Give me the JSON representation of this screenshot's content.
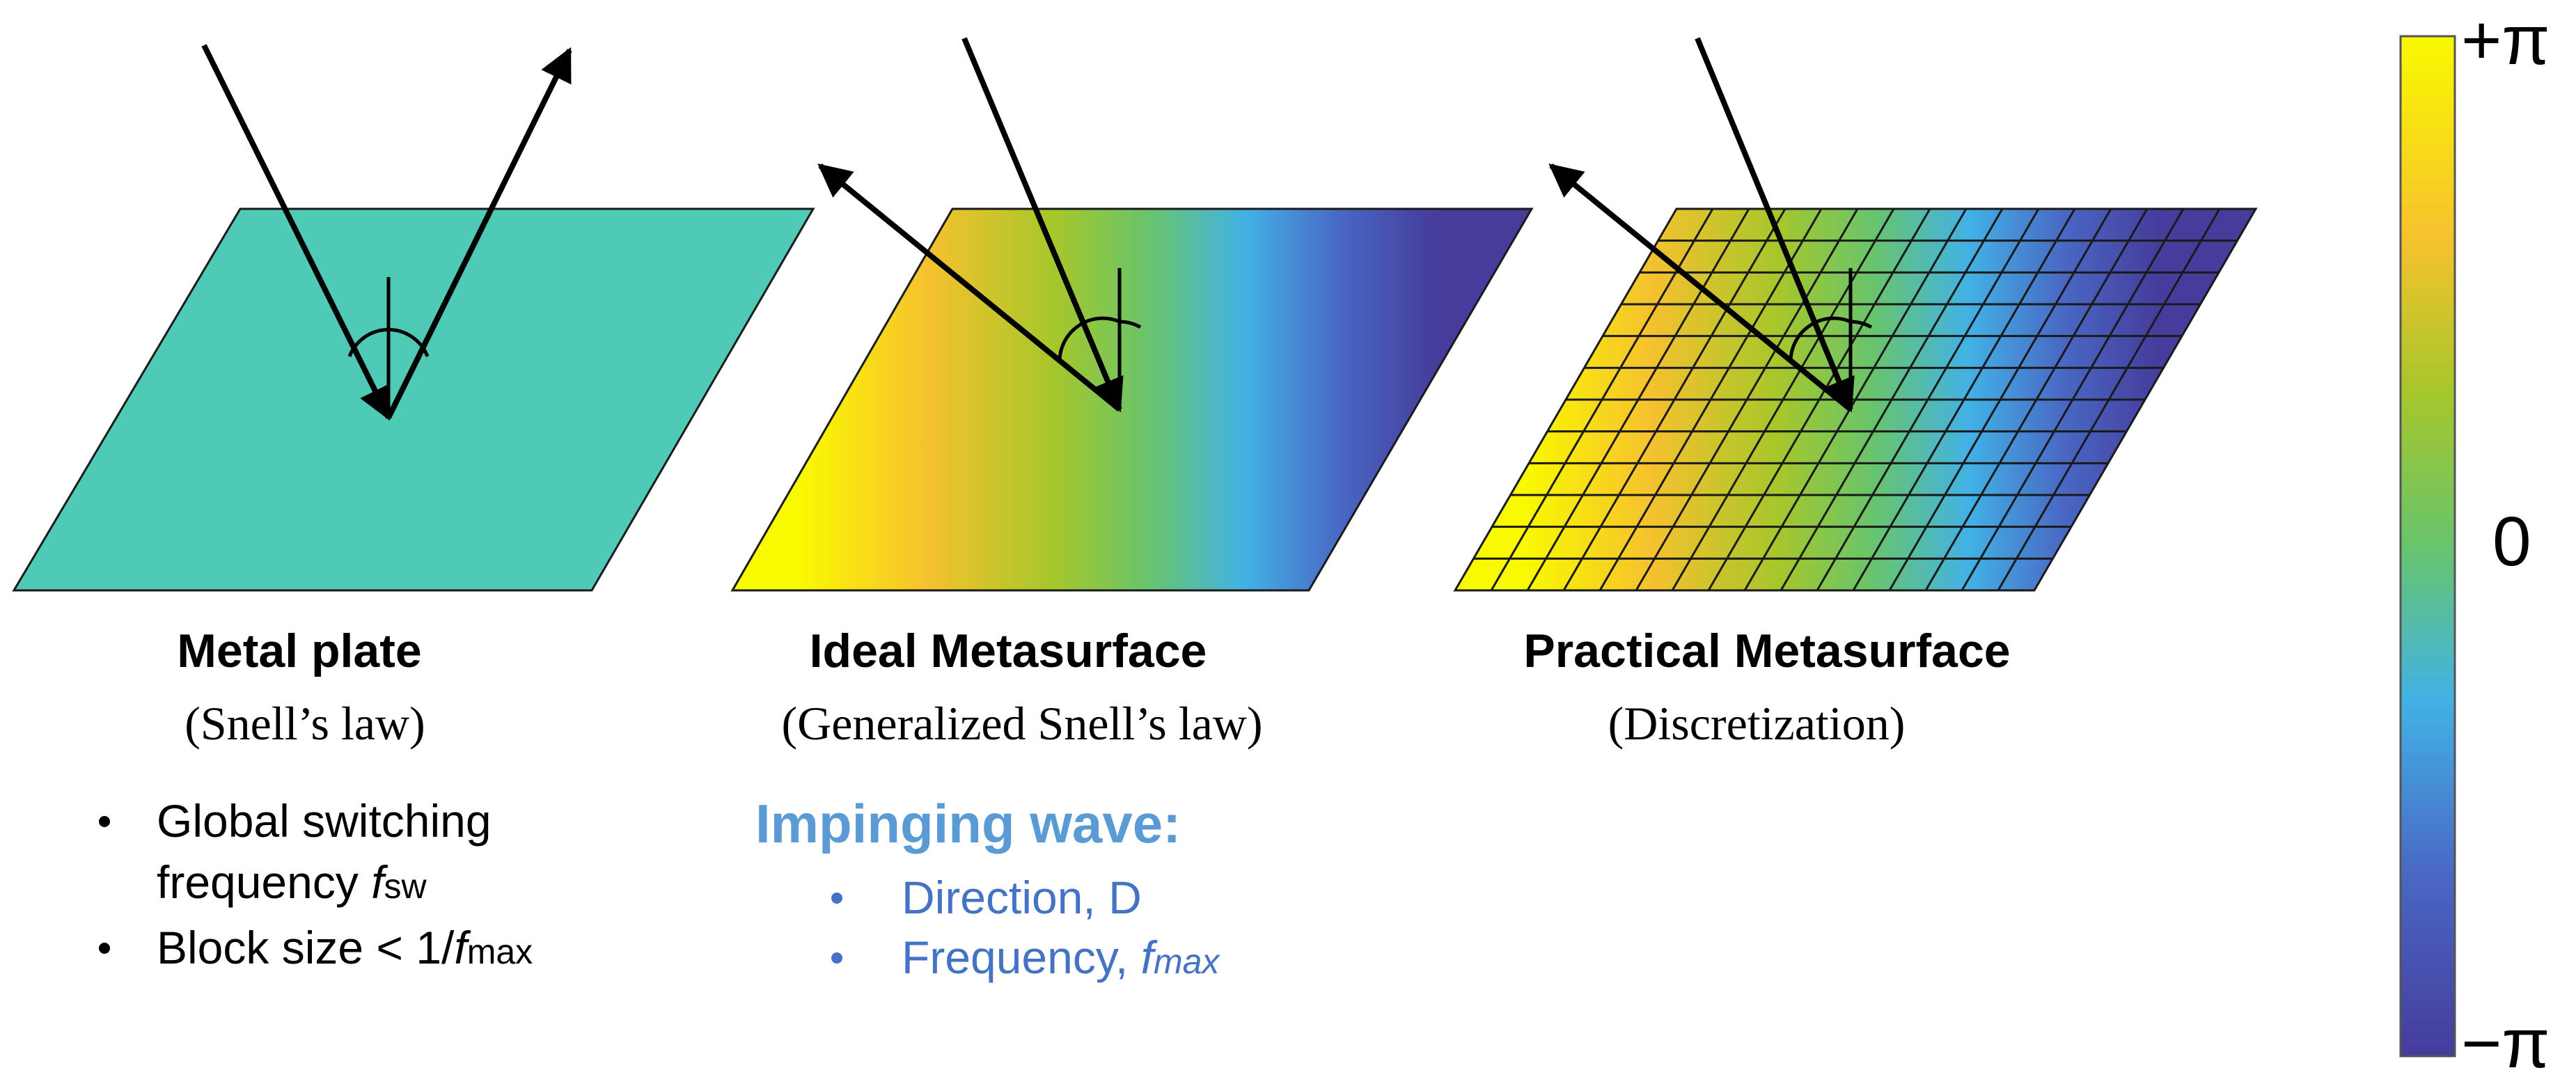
{
  "panels": [
    {
      "title": "Metal plate",
      "subtitle": "(Snell’s law)"
    },
    {
      "title": "Ideal Metasurface",
      "subtitle": "(Generalized Snell’s law)"
    },
    {
      "title": "Practical Metasurface",
      "subtitle": "(Discretization)"
    }
  ],
  "notes": {
    "item1_line1": "Global switching",
    "item1_line2_text": "frequency ",
    "item1_symbol": "f",
    "item1_subscript": "sw",
    "item2_text": "Block size < 1/",
    "item2_symbol": "f",
    "item2_subscript": "max"
  },
  "impinging_wave": {
    "title": "Impinging wave:",
    "item1": "Direction, D",
    "item2_text": "Frequency, ",
    "item2_symbol": "f",
    "item2_subscript": "max"
  },
  "colorbar": {
    "top_label": "+π",
    "mid_label": "0",
    "bottom_label": "−π",
    "colors": [
      "#f9f900",
      "#f6c12e",
      "#a6c72b",
      "#68c46c",
      "#42b2e6",
      "#4968c4",
      "#463c9c"
    ]
  },
  "metal_plate_color": "#4ecab6"
}
